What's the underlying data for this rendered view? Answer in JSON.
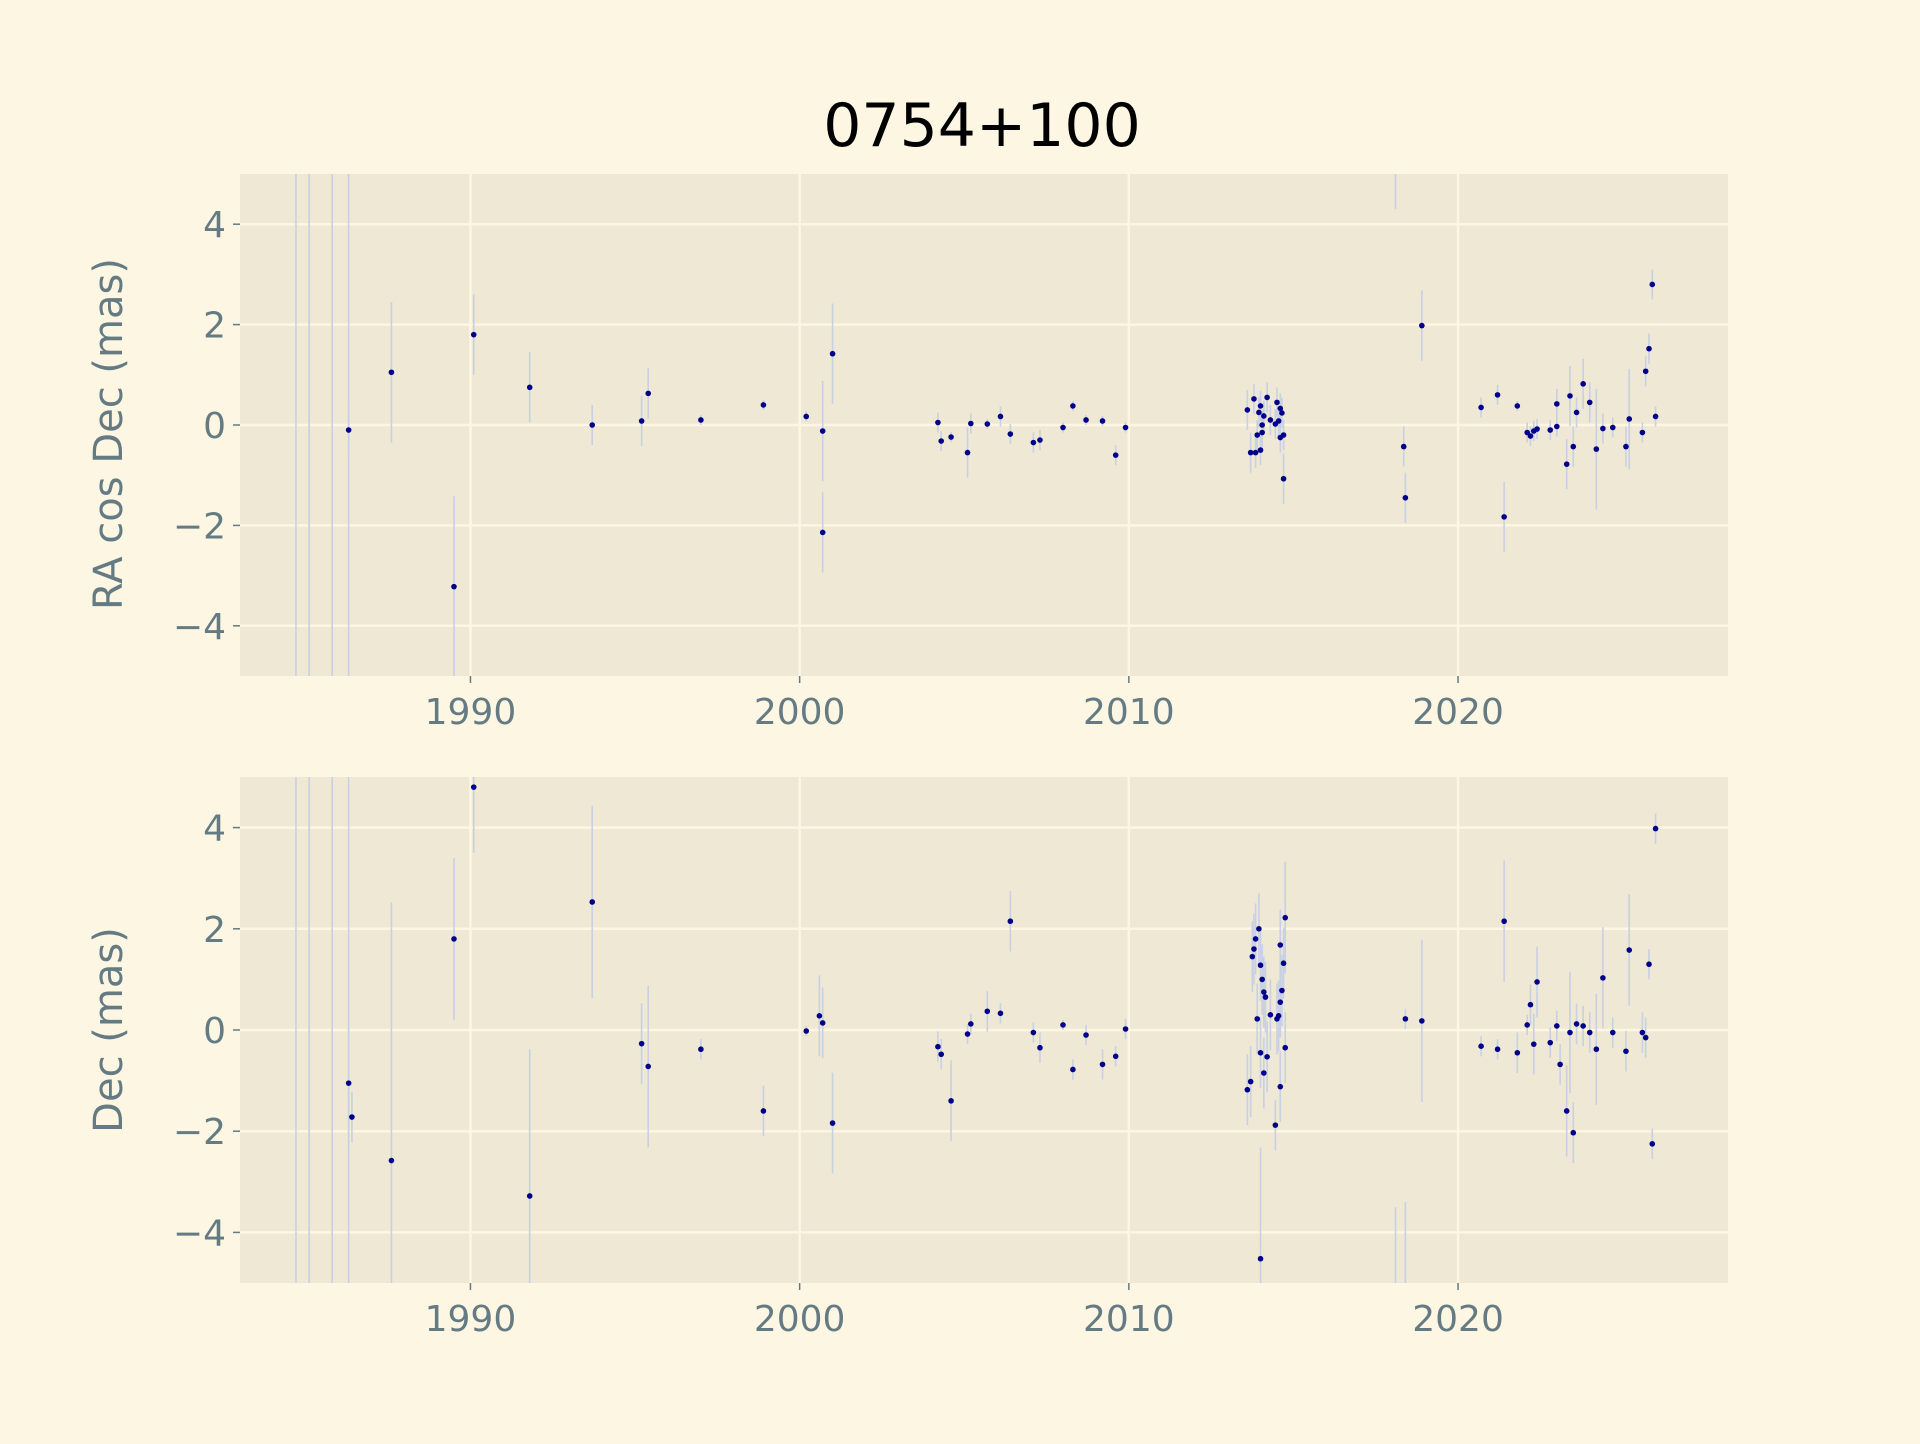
{
  "colors": {
    "figure_bg": "#fdf6e3",
    "axes_bg": "#eee8d5",
    "grid": "#fdf6e3",
    "tick_text": "#657b83",
    "label_text": "#657b83",
    "title_text": "#000000",
    "marker": "#00008b",
    "errorbar": "#c8d0e4"
  },
  "chart_data": {
    "type": "scatter",
    "title": "0754+100",
    "xlim": [
      1983,
      2028.2
    ],
    "grid": true,
    "legend": "none",
    "panels": [
      {
        "ylabel": "RA cos Dec (mas)",
        "ylim": [
          -5,
          5
        ],
        "xticks": [
          "1990",
          "2000",
          "2010",
          "2020"
        ],
        "yticks": [
          "4",
          "2",
          "0",
          "−2",
          "−4"
        ],
        "points": [
          {
            "x": 1986.3,
            "y": -0.1,
            "err": 0.6
          },
          {
            "x": 1987.6,
            "y": 1.05,
            "err": 1.4
          },
          {
            "x": 1989.5,
            "y": -3.22,
            "err": 1.8
          },
          {
            "x": 1990.1,
            "y": 1.8,
            "err": 0.8
          },
          {
            "x": 1991.8,
            "y": 0.75,
            "err": 0.7
          },
          {
            "x": 1993.7,
            "y": 0.0,
            "err": 0.4
          },
          {
            "x": 1995.2,
            "y": 0.08,
            "err": 0.5
          },
          {
            "x": 1995.4,
            "y": 0.63,
            "err": 0.5
          },
          {
            "x": 1997.0,
            "y": 0.1,
            "err": 0.1
          },
          {
            "x": 1998.9,
            "y": 0.4,
            "err": 0.1
          },
          {
            "x": 2000.2,
            "y": 0.17,
            "err": 0.1
          },
          {
            "x": 2000.7,
            "y": -0.12,
            "err": 1.0
          },
          {
            "x": 2000.7,
            "y": -2.14,
            "err": 0.8
          },
          {
            "x": 2001.0,
            "y": 1.42,
            "err": 1.0
          },
          {
            "x": 2004.2,
            "y": 0.05,
            "err": 0.2
          },
          {
            "x": 2004.3,
            "y": -0.32,
            "err": 0.2
          },
          {
            "x": 2004.6,
            "y": -0.24,
            "err": 0.1
          },
          {
            "x": 2005.1,
            "y": -0.55,
            "err": 0.5
          },
          {
            "x": 2005.2,
            "y": 0.03,
            "err": 0.2
          },
          {
            "x": 2005.7,
            "y": 0.02,
            "err": 0.1
          },
          {
            "x": 2006.1,
            "y": 0.17,
            "err": 0.2
          },
          {
            "x": 2006.4,
            "y": -0.18,
            "err": 0.2
          },
          {
            "x": 2007.1,
            "y": -0.35,
            "err": 0.2
          },
          {
            "x": 2007.3,
            "y": -0.3,
            "err": 0.2
          },
          {
            "x": 2008.0,
            "y": -0.05,
            "err": 0.1
          },
          {
            "x": 2008.3,
            "y": 0.38,
            "err": 0.1
          },
          {
            "x": 2008.7,
            "y": 0.1,
            "err": 0.1
          },
          {
            "x": 2009.2,
            "y": 0.08,
            "err": 0.1
          },
          {
            "x": 2009.6,
            "y": -0.6,
            "err": 0.2
          },
          {
            "x": 2009.9,
            "y": -0.05,
            "err": 0.1
          },
          {
            "x": 2013.6,
            "y": 0.3,
            "err": 0.4
          },
          {
            "x": 2013.7,
            "y": -0.55,
            "err": 0.4
          },
          {
            "x": 2013.8,
            "y": 0.52,
            "err": 0.3
          },
          {
            "x": 2013.85,
            "y": -0.55,
            "err": 0.3
          },
          {
            "x": 2013.9,
            "y": -0.2,
            "err": 0.3
          },
          {
            "x": 2013.95,
            "y": 0.25,
            "err": 0.3
          },
          {
            "x": 2014.0,
            "y": 0.38,
            "err": 0.3
          },
          {
            "x": 2014.0,
            "y": -0.5,
            "err": 0.3
          },
          {
            "x": 2014.05,
            "y": 0.0,
            "err": 0.3
          },
          {
            "x": 2014.05,
            "y": -0.15,
            "err": 0.3
          },
          {
            "x": 2014.1,
            "y": 0.18,
            "err": 0.3
          },
          {
            "x": 2014.2,
            "y": 0.55,
            "err": 0.3
          },
          {
            "x": 2014.3,
            "y": 0.1,
            "err": 0.3
          },
          {
            "x": 2014.45,
            "y": 0.02,
            "err": 0.3
          },
          {
            "x": 2014.5,
            "y": 0.45,
            "err": 0.3
          },
          {
            "x": 2014.55,
            "y": 0.08,
            "err": 0.3
          },
          {
            "x": 2014.6,
            "y": 0.33,
            "err": 0.3
          },
          {
            "x": 2014.6,
            "y": -0.25,
            "err": 0.3
          },
          {
            "x": 2014.65,
            "y": 0.24,
            "err": 0.3
          },
          {
            "x": 2014.7,
            "y": -0.2,
            "err": 0.3
          },
          {
            "x": 2014.7,
            "y": -1.07,
            "err": 0.5
          },
          {
            "x": 2018.35,
            "y": -0.43,
            "err": 0.4
          },
          {
            "x": 2018.4,
            "y": -1.45,
            "err": 0.5
          },
          {
            "x": 2018.9,
            "y": 1.98,
            "err": 0.7
          },
          {
            "x": 2020.7,
            "y": 0.35,
            "err": 0.2
          },
          {
            "x": 2021.2,
            "y": 0.6,
            "err": 0.2
          },
          {
            "x": 2021.4,
            "y": -1.83,
            "err": 0.7
          },
          {
            "x": 2021.8,
            "y": 0.38,
            "err": 0.1
          },
          {
            "x": 2022.1,
            "y": -0.15,
            "err": 0.2
          },
          {
            "x": 2022.2,
            "y": -0.22,
            "err": 0.2
          },
          {
            "x": 2022.3,
            "y": -0.12,
            "err": 0.2
          },
          {
            "x": 2022.4,
            "y": -0.08,
            "err": 0.2
          },
          {
            "x": 2022.8,
            "y": -0.1,
            "err": 0.2
          },
          {
            "x": 2023.0,
            "y": 0.42,
            "err": 0.3
          },
          {
            "x": 2023.0,
            "y": -0.03,
            "err": 0.2
          },
          {
            "x": 2023.3,
            "y": -0.78,
            "err": 0.5
          },
          {
            "x": 2023.4,
            "y": 0.58,
            "err": 0.6
          },
          {
            "x": 2023.5,
            "y": -0.43,
            "err": 0.4
          },
          {
            "x": 2023.6,
            "y": 0.25,
            "err": 0.3
          },
          {
            "x": 2023.8,
            "y": 0.82,
            "err": 0.5
          },
          {
            "x": 2024.0,
            "y": 0.45,
            "err": 0.4
          },
          {
            "x": 2024.2,
            "y": -0.48,
            "err": 1.2
          },
          {
            "x": 2024.4,
            "y": -0.07,
            "err": 0.3
          },
          {
            "x": 2024.7,
            "y": -0.05,
            "err": 0.2
          },
          {
            "x": 2025.1,
            "y": -0.43,
            "err": 0.4
          },
          {
            "x": 2025.2,
            "y": 0.12,
            "err": 1.0
          },
          {
            "x": 2025.6,
            "y": -0.15,
            "err": 0.2
          },
          {
            "x": 2025.7,
            "y": 1.07,
            "err": 0.3
          },
          {
            "x": 2025.8,
            "y": 1.52,
            "err": 0.3
          },
          {
            "x": 2025.9,
            "y": 2.8,
            "err": 0.3
          },
          {
            "x": 2026.0,
            "y": 0.17,
            "err": 0.2
          }
        ],
        "offscale_errorbars": [
          {
            "x": 1984.7,
            "y0": -5,
            "y1": 5
          },
          {
            "x": 1985.1,
            "y0": -5,
            "y1": 5
          },
          {
            "x": 1985.8,
            "y0": -5,
            "y1": 5
          },
          {
            "x": 1986.3,
            "y0": -5,
            "y1": 5
          },
          {
            "x": 2018.1,
            "y0": 4.3,
            "y1": 5
          }
        ]
      },
      {
        "ylabel": "Dec (mas)",
        "ylim": [
          -5,
          5
        ],
        "xticks": [
          "1990",
          "2000",
          "2010",
          "2020"
        ],
        "yticks": [
          "4",
          "2",
          "0",
          "−2",
          "−4"
        ],
        "points": [
          {
            "x": 1986.3,
            "y": -1.05,
            "err": 1.3
          },
          {
            "x": 1986.4,
            "y": -1.72,
            "err": 0.5
          },
          {
            "x": 1987.6,
            "y": -2.58,
            "err": 5.1
          },
          {
            "x": 1989.5,
            "y": 1.8,
            "err": 1.6
          },
          {
            "x": 1990.1,
            "y": 4.8,
            "err": 1.3
          },
          {
            "x": 1991.8,
            "y": -3.28,
            "err": 2.9
          },
          {
            "x": 1993.7,
            "y": 2.53,
            "err": 1.9
          },
          {
            "x": 1995.2,
            "y": -0.27,
            "err": 0.8
          },
          {
            "x": 1995.4,
            "y": -0.72,
            "err": 1.6
          },
          {
            "x": 1997.0,
            "y": -0.38,
            "err": 0.2
          },
          {
            "x": 1998.9,
            "y": -1.6,
            "err": 0.5
          },
          {
            "x": 2000.2,
            "y": -0.02,
            "err": 0.1
          },
          {
            "x": 2000.6,
            "y": 0.28,
            "err": 0.8
          },
          {
            "x": 2000.7,
            "y": 0.14,
            "err": 0.7
          },
          {
            "x": 2001.0,
            "y": -1.84,
            "err": 1.0
          },
          {
            "x": 2004.2,
            "y": -0.33,
            "err": 0.3
          },
          {
            "x": 2004.3,
            "y": -0.48,
            "err": 0.3
          },
          {
            "x": 2004.6,
            "y": -1.4,
            "err": 0.8
          },
          {
            "x": 2005.1,
            "y": -0.08,
            "err": 0.2
          },
          {
            "x": 2005.2,
            "y": 0.12,
            "err": 0.2
          },
          {
            "x": 2005.7,
            "y": 0.37,
            "err": 0.4
          },
          {
            "x": 2006.1,
            "y": 0.33,
            "err": 0.2
          },
          {
            "x": 2006.4,
            "y": 2.15,
            "err": 0.6
          },
          {
            "x": 2007.1,
            "y": -0.05,
            "err": 0.2
          },
          {
            "x": 2007.3,
            "y": -0.35,
            "err": 0.3
          },
          {
            "x": 2008.0,
            "y": 0.1,
            "err": 0.1
          },
          {
            "x": 2008.3,
            "y": -0.78,
            "err": 0.2
          },
          {
            "x": 2008.7,
            "y": -0.1,
            "err": 0.2
          },
          {
            "x": 2009.2,
            "y": -0.68,
            "err": 0.3
          },
          {
            "x": 2009.6,
            "y": -0.52,
            "err": 0.2
          },
          {
            "x": 2009.9,
            "y": 0.02,
            "err": 0.2
          },
          {
            "x": 2013.6,
            "y": -1.18,
            "err": 0.7
          },
          {
            "x": 2013.7,
            "y": -1.02,
            "err": 0.7
          },
          {
            "x": 2013.75,
            "y": 1.45,
            "err": 0.7
          },
          {
            "x": 2013.8,
            "y": 1.6,
            "err": 0.7
          },
          {
            "x": 2013.85,
            "y": 1.8,
            "err": 0.7
          },
          {
            "x": 2013.9,
            "y": 0.22,
            "err": 0.7
          },
          {
            "x": 2013.95,
            "y": 2.0,
            "err": 0.7
          },
          {
            "x": 2014.0,
            "y": 1.28,
            "err": 0.7
          },
          {
            "x": 2014.0,
            "y": -0.45,
            "err": 0.7
          },
          {
            "x": 2014.0,
            "y": -4.52,
            "err": 2.2
          },
          {
            "x": 2014.05,
            "y": 1.0,
            "err": 0.7
          },
          {
            "x": 2014.1,
            "y": 0.75,
            "err": 0.7
          },
          {
            "x": 2014.1,
            "y": -0.85,
            "err": 0.7
          },
          {
            "x": 2014.15,
            "y": 0.65,
            "err": 0.7
          },
          {
            "x": 2014.2,
            "y": -0.53,
            "err": 0.7
          },
          {
            "x": 2014.3,
            "y": 0.3,
            "err": 0.7
          },
          {
            "x": 2014.45,
            "y": -1.88,
            "err": 0.5
          },
          {
            "x": 2014.5,
            "y": 0.22,
            "err": 0.7
          },
          {
            "x": 2014.55,
            "y": 0.28,
            "err": 0.7
          },
          {
            "x": 2014.6,
            "y": 0.55,
            "err": 0.7
          },
          {
            "x": 2014.6,
            "y": 1.68,
            "err": 0.7
          },
          {
            "x": 2014.6,
            "y": -1.12,
            "err": 0.7
          },
          {
            "x": 2014.65,
            "y": 0.78,
            "err": 0.7
          },
          {
            "x": 2014.7,
            "y": 1.32,
            "err": 0.7
          },
          {
            "x": 2014.75,
            "y": 2.22,
            "err": 1.1
          },
          {
            "x": 2014.75,
            "y": -0.35,
            "err": 0.7
          },
          {
            "x": 2018.4,
            "y": 0.22,
            "err": 0.2
          },
          {
            "x": 2018.9,
            "y": 0.18,
            "err": 1.6
          },
          {
            "x": 2020.7,
            "y": -0.32,
            "err": 0.2
          },
          {
            "x": 2021.2,
            "y": -0.38,
            "err": 0.2
          },
          {
            "x": 2021.4,
            "y": 2.15,
            "err": 1.2
          },
          {
            "x": 2021.8,
            "y": -0.45,
            "err": 0.4
          },
          {
            "x": 2022.1,
            "y": 0.1,
            "err": 0.2
          },
          {
            "x": 2022.2,
            "y": 0.5,
            "err": 0.4
          },
          {
            "x": 2022.3,
            "y": -0.28,
            "err": 0.6
          },
          {
            "x": 2022.4,
            "y": 0.95,
            "err": 0.7
          },
          {
            "x": 2022.8,
            "y": -0.25,
            "err": 0.3
          },
          {
            "x": 2023.0,
            "y": 0.08,
            "err": 0.3
          },
          {
            "x": 2023.1,
            "y": -0.68,
            "err": 0.4
          },
          {
            "x": 2023.3,
            "y": -1.6,
            "err": 0.9
          },
          {
            "x": 2023.4,
            "y": -0.05,
            "err": 1.2
          },
          {
            "x": 2023.5,
            "y": -2.03,
            "err": 0.6
          },
          {
            "x": 2023.6,
            "y": 0.12,
            "err": 0.4
          },
          {
            "x": 2023.8,
            "y": 0.08,
            "err": 0.4
          },
          {
            "x": 2024.0,
            "y": -0.05,
            "err": 0.4
          },
          {
            "x": 2024.2,
            "y": -0.38,
            "err": 1.1
          },
          {
            "x": 2024.4,
            "y": 1.03,
            "err": 1.0
          },
          {
            "x": 2024.7,
            "y": -0.05,
            "err": 0.3
          },
          {
            "x": 2025.1,
            "y": -0.42,
            "err": 0.4
          },
          {
            "x": 2025.2,
            "y": 1.58,
            "err": 1.1
          },
          {
            "x": 2025.6,
            "y": -0.05,
            "err": 0.4
          },
          {
            "x": 2025.7,
            "y": -0.15,
            "err": 0.4
          },
          {
            "x": 2025.8,
            "y": 1.3,
            "err": 0.3
          },
          {
            "x": 2025.9,
            "y": -2.25,
            "err": 0.3
          },
          {
            "x": 2026.0,
            "y": 3.98,
            "err": 0.3
          }
        ],
        "offscale_errorbars": [
          {
            "x": 1984.7,
            "y0": -5,
            "y1": 5
          },
          {
            "x": 1985.1,
            "y0": -5,
            "y1": 5
          },
          {
            "x": 1985.8,
            "y0": -5,
            "y1": 5
          },
          {
            "x": 1986.3,
            "y0": -5,
            "y1": 5
          },
          {
            "x": 2018.1,
            "y0": -5,
            "y1": -3.5
          },
          {
            "x": 2018.4,
            "y0": -5,
            "y1": -3.4
          }
        ]
      }
    ]
  }
}
